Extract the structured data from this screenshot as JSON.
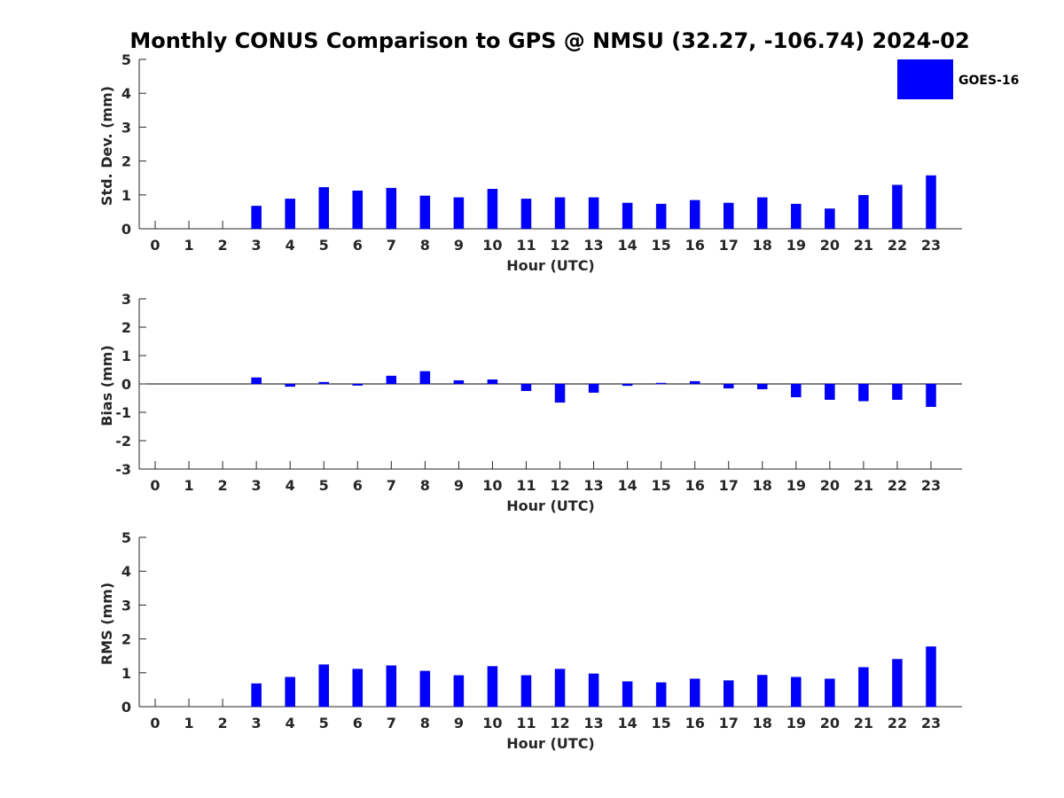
{
  "chart_data": {
    "type": "bar",
    "title": "Monthly CONUS Comparison to GPS @ NMSU (32.27, -106.74) 2024-02",
    "legend": {
      "label": "GOES-16",
      "placement": "top-right",
      "color": "#0000ff"
    },
    "bar_color": "#0000ff",
    "categories": [
      "0",
      "1",
      "2",
      "3",
      "4",
      "5",
      "6",
      "7",
      "8",
      "9",
      "10",
      "11",
      "12",
      "13",
      "14",
      "15",
      "16",
      "17",
      "18",
      "19",
      "20",
      "21",
      "22",
      "23"
    ],
    "panels": [
      {
        "id": "std",
        "ylabel": "Std. Dev. (mm)",
        "xlabel": "Hour (UTC)",
        "ylim": [
          0,
          5
        ],
        "yticks": [
          0,
          1,
          2,
          3,
          4,
          5
        ],
        "zero_line": false,
        "values": [
          null,
          null,
          null,
          0.67,
          0.88,
          1.22,
          1.12,
          1.2,
          0.97,
          0.92,
          1.17,
          0.88,
          0.92,
          0.92,
          0.76,
          0.73,
          0.84,
          0.76,
          0.92,
          0.73,
          0.59,
          0.99,
          1.29,
          1.57
        ]
      },
      {
        "id": "bias",
        "ylabel": "Bias (mm)",
        "xlabel": "Hour (UTC)",
        "ylim": [
          -3,
          3
        ],
        "yticks": [
          -3,
          -2,
          -1,
          0,
          1,
          2,
          3
        ],
        "zero_line": true,
        "values": [
          null,
          null,
          null,
          0.22,
          -0.09,
          0.06,
          -0.05,
          0.28,
          0.44,
          0.12,
          0.15,
          -0.24,
          -0.65,
          -0.3,
          -0.06,
          0.03,
          0.09,
          -0.15,
          -0.18,
          -0.46,
          -0.55,
          -0.6,
          -0.55,
          -0.8
        ]
      },
      {
        "id": "rms",
        "ylabel": "RMS (mm)",
        "xlabel": "Hour (UTC)",
        "ylim": [
          0,
          5
        ],
        "yticks": [
          0,
          1,
          2,
          3,
          4,
          5
        ],
        "zero_line": false,
        "values": [
          null,
          null,
          null,
          0.68,
          0.87,
          1.24,
          1.11,
          1.21,
          1.05,
          0.92,
          1.19,
          0.92,
          1.11,
          0.97,
          0.74,
          0.71,
          0.82,
          0.77,
          0.93,
          0.87,
          0.82,
          1.16,
          1.4,
          1.77
        ]
      }
    ]
  }
}
